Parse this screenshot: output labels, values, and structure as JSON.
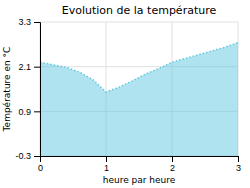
{
  "chart_data": {
    "type": "area",
    "title": "Evolution de la température",
    "x_label": "heure par heure",
    "y_label": "Température en °C",
    "x": [
      0,
      0.2,
      0.4,
      0.6,
      0.8,
      1.0,
      1.2,
      1.4,
      1.6,
      1.8,
      2.0,
      2.2,
      2.4,
      2.6,
      2.8,
      3.0
    ],
    "values": [
      2.22,
      2.15,
      2.08,
      1.95,
      1.75,
      1.42,
      1.55,
      1.72,
      1.9,
      2.05,
      2.22,
      2.32,
      2.42,
      2.52,
      2.62,
      2.75
    ],
    "color": "#60c8e0",
    "line_style": "dotted",
    "xlim": [
      0,
      3
    ],
    "ylim": [
      -0.3,
      3.3
    ],
    "xticks": [
      0,
      1,
      2,
      3
    ],
    "yticks": [
      -0.3,
      0.9,
      2.1,
      3.3
    ],
    "grid": true
  }
}
